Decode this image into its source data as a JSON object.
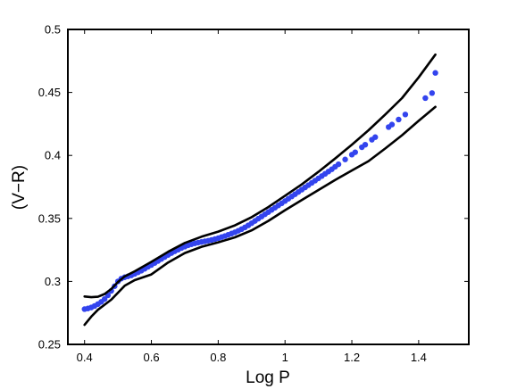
{
  "chart_data": {
    "type": "scatter",
    "title": "",
    "xlabel": "Log P",
    "ylabel": "(V−R)",
    "xlim": [
      0.35,
      1.55
    ],
    "ylim": [
      0.25,
      0.5
    ],
    "xticks": [
      0.4,
      0.6,
      0.8,
      1.0,
      1.2,
      1.4
    ],
    "xtick_labels": [
      "0.4",
      "0.6",
      "0.8",
      "1",
      "1.2",
      "1.4"
    ],
    "yticks": [
      0.25,
      0.3,
      0.35,
      0.4,
      0.45,
      0.5
    ],
    "ytick_labels": [
      "0.25",
      "0.3",
      "0.35",
      "0.4",
      "0.45",
      "0.5"
    ],
    "grid": false,
    "legend": "none",
    "colors": {
      "points": "#3344ee",
      "bounds": "#000000"
    },
    "series": [
      {
        "kind": "points",
        "x": [
          0.4,
          0.41,
          0.42,
          0.43,
          0.44,
          0.45,
          0.46,
          0.47,
          0.48,
          0.49,
          0.5,
          0.51,
          0.52,
          0.53,
          0.54,
          0.55,
          0.56,
          0.57,
          0.58,
          0.59,
          0.6,
          0.61,
          0.62,
          0.63,
          0.64,
          0.65,
          0.66,
          0.67,
          0.68,
          0.69,
          0.7,
          0.71,
          0.72,
          0.73,
          0.74,
          0.75,
          0.76,
          0.77,
          0.78,
          0.79,
          0.8,
          0.81,
          0.82,
          0.83,
          0.84,
          0.85,
          0.86,
          0.87,
          0.88,
          0.89,
          0.9,
          0.91,
          0.92,
          0.93,
          0.94,
          0.95,
          0.96,
          0.97,
          0.98,
          0.99,
          1.0,
          1.01,
          1.02,
          1.03,
          1.04,
          1.05,
          1.06,
          1.07,
          1.08,
          1.09,
          1.1,
          1.11,
          1.12,
          1.13,
          1.14,
          1.15,
          1.16,
          1.18,
          1.2,
          1.21,
          1.23,
          1.24,
          1.26,
          1.27,
          1.31,
          1.32,
          1.34,
          1.36,
          1.42,
          1.44,
          1.45
        ],
        "y": [
          0.278,
          0.2785,
          0.2793,
          0.2805,
          0.282,
          0.2838,
          0.286,
          0.289,
          0.2925,
          0.2962,
          0.3,
          0.3022,
          0.3033,
          0.304,
          0.3048,
          0.306,
          0.3072,
          0.3085,
          0.31,
          0.3116,
          0.313,
          0.3146,
          0.3162,
          0.3178,
          0.3194,
          0.321,
          0.3225,
          0.3239,
          0.3252,
          0.3265,
          0.3276,
          0.3287,
          0.3295,
          0.3302,
          0.3308,
          0.3313,
          0.3318,
          0.3323,
          0.3329,
          0.3336,
          0.3343,
          0.3352,
          0.336,
          0.337,
          0.338,
          0.339,
          0.3402,
          0.3415,
          0.3429,
          0.3445,
          0.3462,
          0.348,
          0.3498,
          0.3515,
          0.3533,
          0.355,
          0.3568,
          0.3585,
          0.3603,
          0.362,
          0.3638,
          0.3656,
          0.3674,
          0.3692,
          0.371,
          0.3728,
          0.3746,
          0.3764,
          0.3782,
          0.38,
          0.3818,
          0.3836,
          0.3854,
          0.3872,
          0.389,
          0.391,
          0.393,
          0.3968,
          0.4006,
          0.4025,
          0.4065,
          0.4085,
          0.4125,
          0.4145,
          0.4225,
          0.4245,
          0.4285,
          0.4325,
          0.4455,
          0.4495,
          0.4655
        ]
      },
      {
        "kind": "upper-bound",
        "x": [
          0.4,
          0.42,
          0.44,
          0.46,
          0.48,
          0.5,
          0.52,
          0.55,
          0.6,
          0.65,
          0.7,
          0.75,
          0.8,
          0.85,
          0.9,
          0.95,
          1.0,
          1.05,
          1.1,
          1.15,
          1.2,
          1.25,
          1.3,
          1.35,
          1.4,
          1.45
        ],
        "y": [
          0.288,
          0.2875,
          0.2878,
          0.29,
          0.294,
          0.2995,
          0.304,
          0.308,
          0.3155,
          0.3235,
          0.3305,
          0.3355,
          0.3395,
          0.3445,
          0.351,
          0.359,
          0.368,
          0.377,
          0.387,
          0.3975,
          0.4085,
          0.42,
          0.4325,
          0.4455,
          0.462,
          0.48
        ]
      },
      {
        "kind": "lower-bound",
        "x": [
          0.4,
          0.42,
          0.44,
          0.46,
          0.48,
          0.5,
          0.52,
          0.55,
          0.6,
          0.65,
          0.7,
          0.75,
          0.8,
          0.85,
          0.9,
          0.95,
          1.0,
          1.05,
          1.1,
          1.15,
          1.2,
          1.25,
          1.3,
          1.35,
          1.4,
          1.45
        ],
        "y": [
          0.2655,
          0.272,
          0.2775,
          0.2815,
          0.2855,
          0.291,
          0.2965,
          0.301,
          0.3055,
          0.315,
          0.3225,
          0.3275,
          0.331,
          0.335,
          0.3405,
          0.348,
          0.3565,
          0.3645,
          0.3725,
          0.3805,
          0.388,
          0.3955,
          0.4055,
          0.416,
          0.4275,
          0.4385
        ]
      }
    ]
  }
}
